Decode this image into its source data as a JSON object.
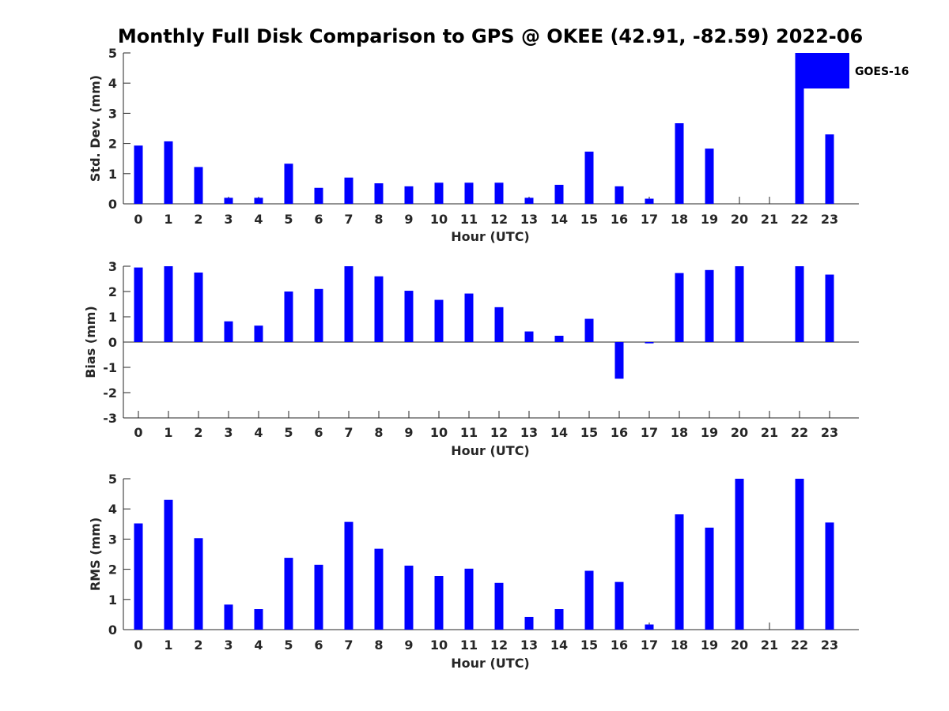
{
  "figure_title": "Monthly Full Disk Comparison to GPS @ OKEE (42.91, -82.59) 2022-06",
  "legend": {
    "label": "GOES-16",
    "color": "#0000ff"
  },
  "chart_data": [
    {
      "type": "bar",
      "title": "Monthly Full Disk Comparison to GPS @ OKEE (42.91, -82.59) 2022-06",
      "xlabel": "Hour (UTC)",
      "ylabel": "Std. Dev. (mm)",
      "ylim": [
        0,
        5
      ],
      "yticks": [
        0,
        1,
        2,
        3,
        4,
        5
      ],
      "categories": [
        "0",
        "1",
        "2",
        "3",
        "4",
        "5",
        "6",
        "7",
        "8",
        "9",
        "10",
        "11",
        "12",
        "13",
        "14",
        "15",
        "16",
        "17",
        "18",
        "19",
        "20",
        "21",
        "22",
        "23"
      ],
      "values": [
        1.93,
        2.07,
        1.22,
        0.2,
        0.2,
        1.33,
        0.53,
        0.87,
        0.68,
        0.58,
        0.7,
        0.7,
        0.7,
        0.2,
        0.63,
        1.73,
        0.58,
        0.17,
        2.67,
        1.83,
        0,
        0,
        5.0,
        2.3
      ],
      "series_name": "GOES-16"
    },
    {
      "type": "bar",
      "xlabel": "Hour (UTC)",
      "ylabel": "Bias (mm)",
      "ylim": [
        -3,
        3
      ],
      "yticks": [
        -3,
        -2,
        -1,
        0,
        1,
        2,
        3
      ],
      "categories": [
        "0",
        "1",
        "2",
        "3",
        "4",
        "5",
        "6",
        "7",
        "8",
        "9",
        "10",
        "11",
        "12",
        "13",
        "14",
        "15",
        "16",
        "17",
        "18",
        "19",
        "20",
        "21",
        "22",
        "23"
      ],
      "values": [
        2.95,
        3.0,
        2.75,
        0.82,
        0.65,
        2.0,
        2.1,
        3.0,
        2.6,
        2.03,
        1.67,
        1.92,
        1.38,
        0.42,
        0.25,
        0.92,
        -1.45,
        -0.05,
        2.73,
        2.85,
        3.0,
        0,
        3.0,
        2.67
      ],
      "series_name": "GOES-16"
    },
    {
      "type": "bar",
      "xlabel": "Hour (UTC)",
      "ylabel": "RMS (mm)",
      "ylim": [
        0,
        5
      ],
      "yticks": [
        0,
        1,
        2,
        3,
        4,
        5
      ],
      "categories": [
        "0",
        "1",
        "2",
        "3",
        "4",
        "5",
        "6",
        "7",
        "8",
        "9",
        "10",
        "11",
        "12",
        "13",
        "14",
        "15",
        "16",
        "17",
        "18",
        "19",
        "20",
        "21",
        "22",
        "23"
      ],
      "values": [
        3.52,
        4.3,
        3.03,
        0.83,
        0.68,
        2.38,
        2.15,
        3.57,
        2.68,
        2.12,
        1.78,
        2.02,
        1.55,
        0.42,
        0.68,
        1.95,
        1.58,
        0.17,
        3.82,
        3.38,
        5.0,
        0,
        5.0,
        3.55
      ],
      "series_name": "GOES-16"
    }
  ]
}
